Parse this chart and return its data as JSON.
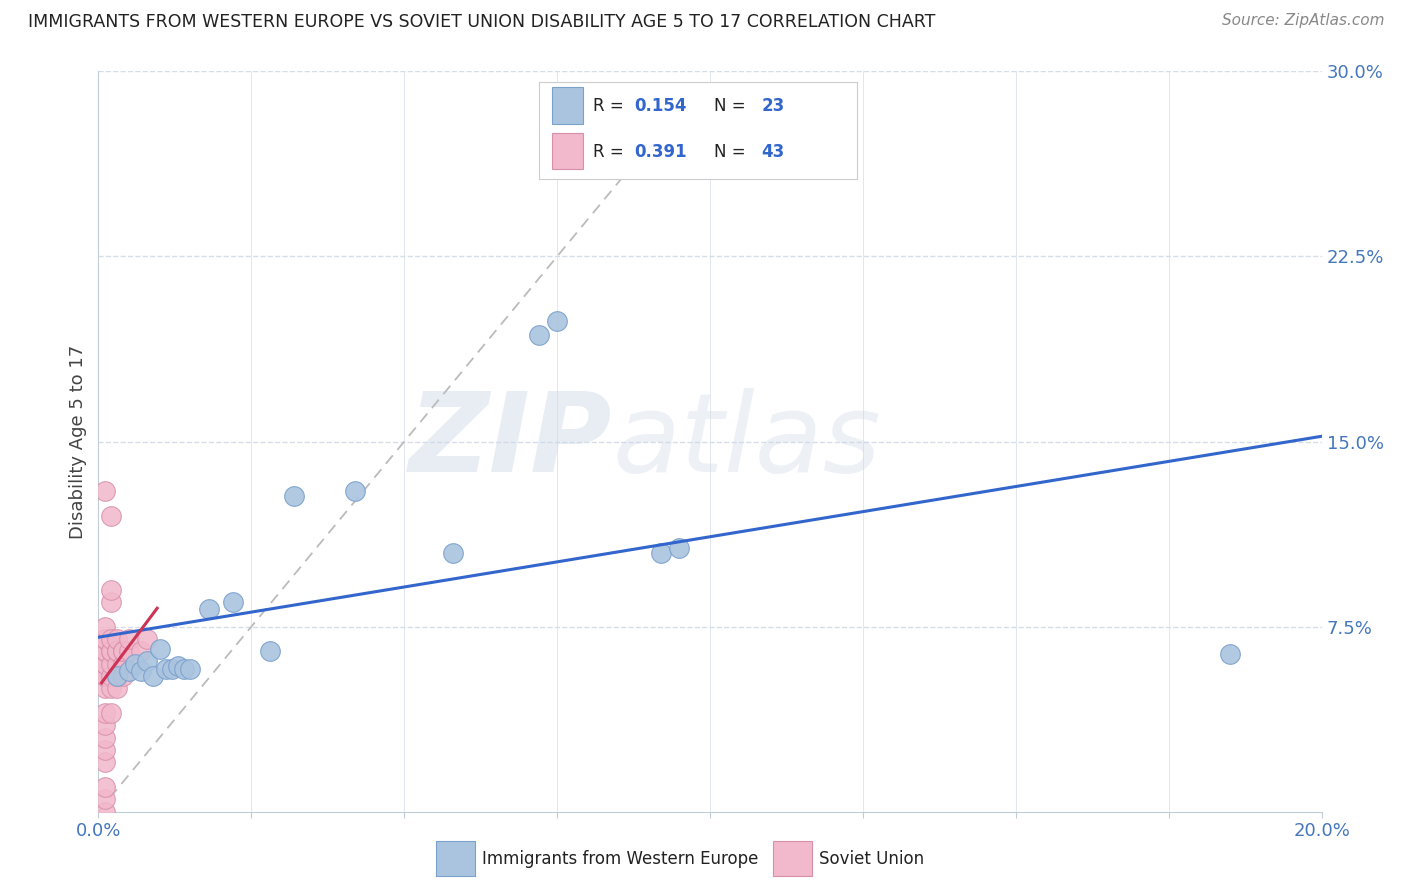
{
  "title": "IMMIGRANTS FROM WESTERN EUROPE VS SOVIET UNION DISABILITY AGE 5 TO 17 CORRELATION CHART",
  "source": "Source: ZipAtlas.com",
  "ylabel_label": "Disability Age 5 to 17",
  "xlim": [
    0.0,
    0.2
  ],
  "ylim": [
    0.0,
    0.3
  ],
  "xticks": [
    0.0,
    0.025,
    0.05,
    0.075,
    0.1,
    0.125,
    0.15,
    0.175,
    0.2
  ],
  "yticks": [
    0.075,
    0.15,
    0.225,
    0.3
  ],
  "ytick_labels": [
    "7.5%",
    "15.0%",
    "22.5%",
    "30.0%"
  ],
  "xtick_labels": [
    "0.0%",
    "",
    "",
    "",
    "",
    "",
    "",
    "",
    "20.0%"
  ],
  "legend_r1": "0.154",
  "legend_n1": "23",
  "legend_r2": "0.391",
  "legend_n2": "43",
  "watermark_zip": "ZIP",
  "watermark_atlas": "atlas",
  "blue_color": "#aac4df",
  "pink_color": "#f2b8cb",
  "blue_edge_color": "#7aa0cc",
  "pink_edge_color": "#d890aa",
  "blue_line_color": "#3366cc",
  "pink_line_color": "#cc3355",
  "dashed_line_color": "#bbbbbb",
  "grid_color": "#d5dde8",
  "title_color": "#222222",
  "source_color": "#888888",
  "ylabel_color": "#444444",
  "tick_label_color": "#4477bb",
  "we_x": [
    0.003,
    0.005,
    0.006,
    0.007,
    0.008,
    0.009,
    0.01,
    0.011,
    0.012,
    0.013,
    0.014,
    0.015,
    0.018,
    0.022,
    0.028,
    0.032,
    0.042,
    0.058,
    0.072,
    0.075,
    0.092,
    0.095,
    0.185
  ],
  "we_y": [
    0.055,
    0.057,
    0.06,
    0.057,
    0.061,
    0.055,
    0.066,
    0.058,
    0.058,
    0.059,
    0.058,
    0.058,
    0.082,
    0.085,
    0.065,
    0.128,
    0.13,
    0.105,
    0.193,
    0.199,
    0.105,
    0.107,
    0.064
  ],
  "su_x": [
    0.001,
    0.001,
    0.001,
    0.001,
    0.001,
    0.001,
    0.001,
    0.001,
    0.001,
    0.001,
    0.001,
    0.001,
    0.001,
    0.001,
    0.001,
    0.001,
    0.001,
    0.001,
    0.001,
    0.002,
    0.002,
    0.002,
    0.002,
    0.002,
    0.002,
    0.002,
    0.002,
    0.002,
    0.002,
    0.003,
    0.003,
    0.003,
    0.003,
    0.003,
    0.003,
    0.004,
    0.004,
    0.004,
    0.004,
    0.005,
    0.005,
    0.007,
    0.008
  ],
  "su_y": [
    0.0,
    0.005,
    0.01,
    0.02,
    0.025,
    0.03,
    0.035,
    0.04,
    0.05,
    0.055,
    0.055,
    0.06,
    0.06,
    0.065,
    0.065,
    0.07,
    0.07,
    0.075,
    0.13,
    0.04,
    0.05,
    0.055,
    0.06,
    0.065,
    0.065,
    0.07,
    0.085,
    0.09,
    0.12,
    0.05,
    0.055,
    0.06,
    0.065,
    0.065,
    0.07,
    0.055,
    0.06,
    0.065,
    0.065,
    0.065,
    0.07,
    0.065,
    0.07
  ]
}
